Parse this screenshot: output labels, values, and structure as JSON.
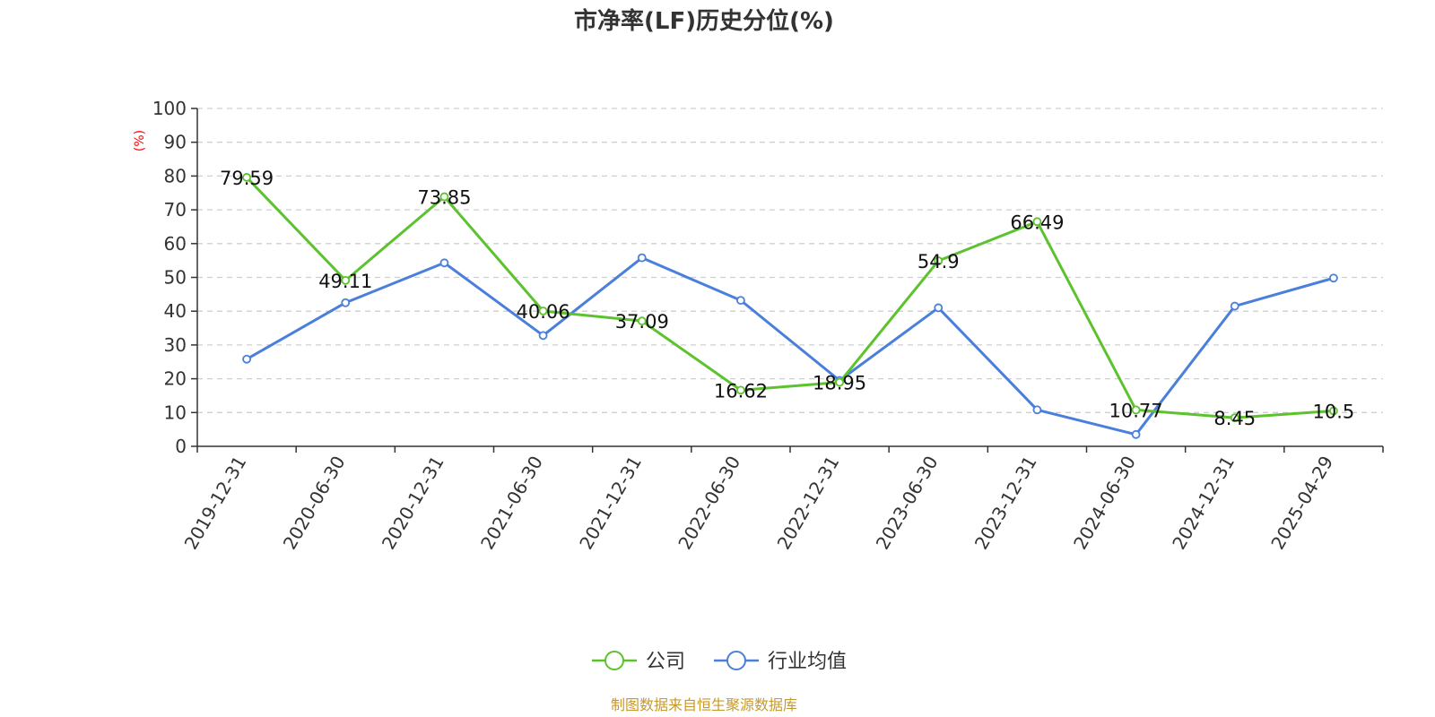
{
  "chart_data": {
    "type": "line",
    "title": "市净率(LF)历史分位(%)",
    "ylabel": "(%)",
    "ylim": [
      0,
      100
    ],
    "yticks": [
      0,
      10,
      20,
      30,
      40,
      50,
      60,
      70,
      80,
      90,
      100
    ],
    "grid": true,
    "legend_position": "bottom-center",
    "x": [
      "2019-12-31",
      "2020-06-30",
      "2020-12-31",
      "2021-06-30",
      "2021-12-31",
      "2022-06-30",
      "2022-12-31",
      "2023-06-30",
      "2023-12-31",
      "2024-06-30",
      "2024-12-31",
      "2025-04-29"
    ],
    "series": [
      {
        "name": "公司",
        "color": "#5cc22e",
        "labels": [
          "79.59",
          "49.11",
          "73.85",
          "40.06",
          "37.09",
          "16.62",
          "18.95",
          "54.9",
          "66.49",
          "10.77",
          "8.45",
          "10.5"
        ],
        "values": [
          79.59,
          49.11,
          73.85,
          40.06,
          37.09,
          16.62,
          18.95,
          54.9,
          66.49,
          10.77,
          8.45,
          10.5
        ]
      },
      {
        "name": "行业均值",
        "color": "#4a7fdc",
        "values": [
          25.8,
          42.5,
          54.3,
          32.8,
          55.8,
          43.2,
          19.5,
          41.0,
          10.8,
          3.5,
          41.5,
          49.8
        ]
      }
    ],
    "source": "制图数据来自恒生聚源数据库"
  }
}
